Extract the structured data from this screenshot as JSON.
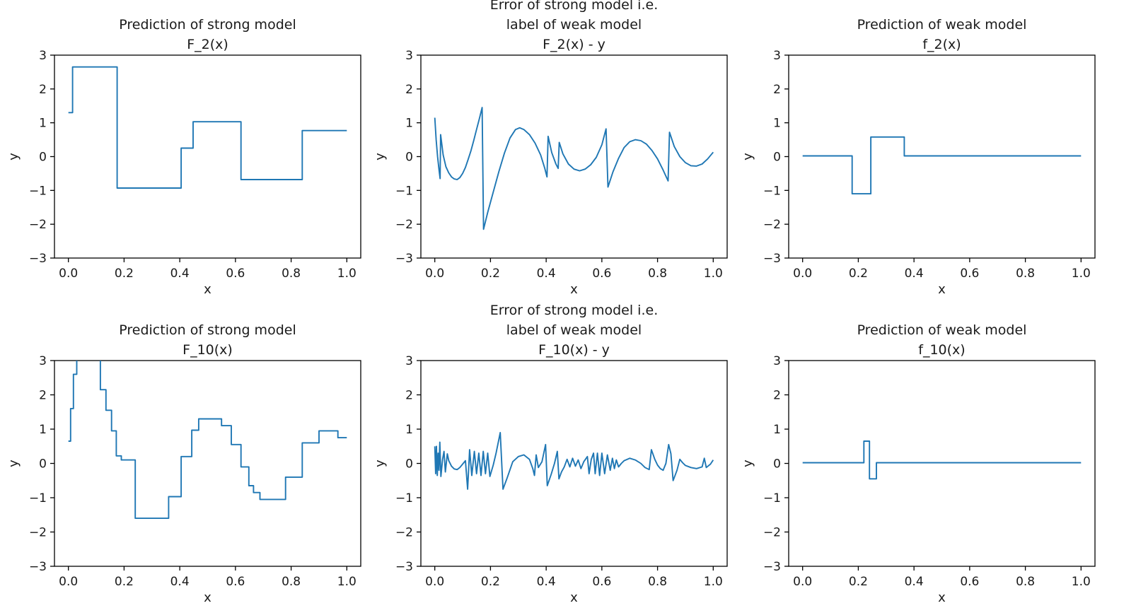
{
  "figure": {
    "background": "#ffffff",
    "line_color": "#1f77b4",
    "axis_color": "#000000",
    "xlim": [
      -0.05,
      1.05
    ],
    "ylim": [
      -3,
      3
    ],
    "xlabel": "x",
    "ylabel": "y",
    "grid": false,
    "legend": "none",
    "xticks": {
      "values": [
        0.0,
        0.2,
        0.4,
        0.6,
        0.8,
        1.0
      ],
      "labels": [
        "0.0",
        "0.2",
        "0.4",
        "0.6",
        "0.8",
        "1.0"
      ]
    },
    "yticks": {
      "values": [
        -3,
        -2,
        -1,
        0,
        1,
        2,
        3
      ],
      "labels": [
        "−3",
        "−2",
        "−1",
        "0",
        "1",
        "2",
        "3"
      ]
    }
  },
  "chart_data": [
    {
      "id": "strong-F2",
      "type": "line",
      "title_lines": [
        "Prediction of strong model",
        "F_2(x)"
      ],
      "title": "Prediction of strong model F_2(x)",
      "xlabel": "x",
      "ylabel": "y",
      "xlim": [
        -0.05,
        1.05
      ],
      "ylim": [
        -3,
        3
      ],
      "style": "step",
      "points": [
        [
          0,
          1.3
        ],
        [
          0.015,
          1.3
        ],
        [
          0.015,
          2.65
        ],
        [
          0.175,
          2.65
        ],
        [
          0.175,
          -0.93
        ],
        [
          0.405,
          -0.93
        ],
        [
          0.405,
          0.25
        ],
        [
          0.448,
          0.25
        ],
        [
          0.448,
          1.03
        ],
        [
          0.62,
          1.03
        ],
        [
          0.62,
          -0.68
        ],
        [
          0.84,
          -0.68
        ],
        [
          0.84,
          0.77
        ],
        [
          1.0,
          0.77
        ]
      ]
    },
    {
      "id": "error-F2",
      "type": "line",
      "title_lines": [
        "Error of strong model i.e.",
        "label of weak model",
        "F_2(x) - y"
      ],
      "title": "Error of strong model i.e. label of weak model F_2(x) - y",
      "xlabel": "x",
      "ylabel": "y",
      "xlim": [
        -0.05,
        1.05
      ],
      "ylim": [
        -3,
        3
      ],
      "style": "curve",
      "points": [
        [
          0,
          1.15
        ],
        [
          0.005,
          0.5
        ],
        [
          0.01,
          0.0
        ],
        [
          0.015,
          -0.38
        ],
        [
          0.019,
          -0.65
        ],
        [
          0.021,
          0.65
        ],
        [
          0.03,
          0.05
        ],
        [
          0.04,
          -0.3
        ],
        [
          0.05,
          -0.48
        ],
        [
          0.06,
          -0.6
        ],
        [
          0.07,
          -0.66
        ],
        [
          0.08,
          -0.68
        ],
        [
          0.09,
          -0.62
        ],
        [
          0.1,
          -0.5
        ],
        [
          0.11,
          -0.32
        ],
        [
          0.12,
          -0.08
        ],
        [
          0.13,
          0.18
        ],
        [
          0.14,
          0.48
        ],
        [
          0.15,
          0.8
        ],
        [
          0.16,
          1.12
        ],
        [
          0.17,
          1.45
        ],
        [
          0.175,
          -2.15
        ],
        [
          0.19,
          -1.65
        ],
        [
          0.21,
          -1.05
        ],
        [
          0.23,
          -0.45
        ],
        [
          0.25,
          0.1
        ],
        [
          0.27,
          0.55
        ],
        [
          0.29,
          0.8
        ],
        [
          0.305,
          0.85
        ],
        [
          0.32,
          0.8
        ],
        [
          0.34,
          0.65
        ],
        [
          0.36,
          0.4
        ],
        [
          0.38,
          0.05
        ],
        [
          0.395,
          -0.35
        ],
        [
          0.403,
          -0.6
        ],
        [
          0.407,
          0.6
        ],
        [
          0.42,
          0.12
        ],
        [
          0.435,
          -0.22
        ],
        [
          0.443,
          -0.35
        ],
        [
          0.447,
          0.42
        ],
        [
          0.46,
          0.08
        ],
        [
          0.48,
          -0.22
        ],
        [
          0.5,
          -0.37
        ],
        [
          0.52,
          -0.42
        ],
        [
          0.54,
          -0.37
        ],
        [
          0.56,
          -0.24
        ],
        [
          0.58,
          -0.02
        ],
        [
          0.6,
          0.35
        ],
        [
          0.615,
          0.82
        ],
        [
          0.622,
          -0.9
        ],
        [
          0.64,
          -0.45
        ],
        [
          0.66,
          -0.05
        ],
        [
          0.68,
          0.27
        ],
        [
          0.7,
          0.44
        ],
        [
          0.72,
          0.5
        ],
        [
          0.74,
          0.47
        ],
        [
          0.76,
          0.37
        ],
        [
          0.78,
          0.18
        ],
        [
          0.8,
          -0.07
        ],
        [
          0.82,
          -0.4
        ],
        [
          0.838,
          -0.72
        ],
        [
          0.843,
          0.72
        ],
        [
          0.86,
          0.3
        ],
        [
          0.88,
          0.0
        ],
        [
          0.9,
          -0.18
        ],
        [
          0.92,
          -0.27
        ],
        [
          0.94,
          -0.28
        ],
        [
          0.96,
          -0.22
        ],
        [
          0.98,
          -0.07
        ],
        [
          1.0,
          0.13
        ]
      ]
    },
    {
      "id": "weak-f2",
      "type": "line",
      "title_lines": [
        "Prediction of weak model",
        "f_2(x)"
      ],
      "title": "Prediction of weak model f_2(x)",
      "xlabel": "x",
      "ylabel": "y",
      "xlim": [
        -0.05,
        1.05
      ],
      "ylim": [
        -3,
        3
      ],
      "style": "step",
      "points": [
        [
          0,
          0.02
        ],
        [
          0.178,
          0.02
        ],
        [
          0.178,
          -1.1
        ],
        [
          0.245,
          -1.1
        ],
        [
          0.245,
          0.58
        ],
        [
          0.365,
          0.58
        ],
        [
          0.365,
          0.02
        ],
        [
          1.0,
          0.02
        ]
      ]
    },
    {
      "id": "strong-F10",
      "type": "line",
      "title_lines": [
        "Prediction of strong model",
        "F_10(x)"
      ],
      "title": "Prediction of strong model F_10(x)",
      "xlabel": "x",
      "ylabel": "y",
      "xlim": [
        -0.05,
        1.05
      ],
      "ylim": [
        -3,
        3
      ],
      "style": "step",
      "points": [
        [
          0,
          0.65
        ],
        [
          0.008,
          0.65
        ],
        [
          0.008,
          1.6
        ],
        [
          0.018,
          1.6
        ],
        [
          0.018,
          2.6
        ],
        [
          0.03,
          2.6
        ],
        [
          0.03,
          3.4
        ],
        [
          0.115,
          3.4
        ],
        [
          0.115,
          2.15
        ],
        [
          0.135,
          2.15
        ],
        [
          0.135,
          1.55
        ],
        [
          0.155,
          1.55
        ],
        [
          0.155,
          0.95
        ],
        [
          0.172,
          0.95
        ],
        [
          0.172,
          0.22
        ],
        [
          0.19,
          0.22
        ],
        [
          0.19,
          0.1
        ],
        [
          0.24,
          0.1
        ],
        [
          0.24,
          -1.6
        ],
        [
          0.36,
          -1.6
        ],
        [
          0.36,
          -0.97
        ],
        [
          0.405,
          -0.97
        ],
        [
          0.405,
          0.2
        ],
        [
          0.443,
          0.2
        ],
        [
          0.443,
          0.97
        ],
        [
          0.468,
          0.97
        ],
        [
          0.468,
          1.3
        ],
        [
          0.55,
          1.3
        ],
        [
          0.55,
          1.1
        ],
        [
          0.585,
          1.1
        ],
        [
          0.585,
          0.55
        ],
        [
          0.62,
          0.55
        ],
        [
          0.62,
          -0.1
        ],
        [
          0.648,
          -0.1
        ],
        [
          0.648,
          -0.65
        ],
        [
          0.665,
          -0.65
        ],
        [
          0.665,
          -0.85
        ],
        [
          0.688,
          -0.85
        ],
        [
          0.688,
          -1.05
        ],
        [
          0.78,
          -1.05
        ],
        [
          0.78,
          -0.4
        ],
        [
          0.84,
          -0.4
        ],
        [
          0.84,
          0.6
        ],
        [
          0.9,
          0.6
        ],
        [
          0.9,
          0.95
        ],
        [
          0.968,
          0.95
        ],
        [
          0.968,
          0.75
        ],
        [
          1.0,
          0.75
        ]
      ]
    },
    {
      "id": "error-F10",
      "type": "line",
      "title_lines": [
        "Error of strong model i.e.",
        "label of weak model",
        "F_10(x) - y"
      ],
      "title": "Error of strong model i.e. label of weak model F_10(x) - y",
      "xlabel": "x",
      "ylabel": "y",
      "xlim": [
        -0.05,
        1.05
      ],
      "ylim": [
        -3,
        3
      ],
      "style": "curve",
      "points": [
        [
          0,
          0.5
        ],
        [
          0.003,
          -0.3
        ],
        [
          0.006,
          0.5
        ],
        [
          0.009,
          -0.35
        ],
        [
          0.012,
          0.3
        ],
        [
          0.015,
          -0.2
        ],
        [
          0.018,
          0.62
        ],
        [
          0.022,
          -0.38
        ],
        [
          0.028,
          0.12
        ],
        [
          0.033,
          0.35
        ],
        [
          0.038,
          -0.25
        ],
        [
          0.045,
          0.28
        ],
        [
          0.05,
          0.08
        ],
        [
          0.06,
          -0.08
        ],
        [
          0.07,
          -0.16
        ],
        [
          0.08,
          -0.18
        ],
        [
          0.09,
          -0.12
        ],
        [
          0.1,
          -0.02
        ],
        [
          0.11,
          0.08
        ],
        [
          0.118,
          -0.75
        ],
        [
          0.125,
          0.4
        ],
        [
          0.133,
          -0.35
        ],
        [
          0.142,
          0.35
        ],
        [
          0.15,
          -0.3
        ],
        [
          0.158,
          0.3
        ],
        [
          0.166,
          -0.35
        ],
        [
          0.174,
          0.35
        ],
        [
          0.182,
          -0.3
        ],
        [
          0.19,
          0.3
        ],
        [
          0.198,
          -0.38
        ],
        [
          0.21,
          -0.05
        ],
        [
          0.22,
          0.3
        ],
        [
          0.235,
          0.9
        ],
        [
          0.245,
          -0.75
        ],
        [
          0.26,
          -0.42
        ],
        [
          0.28,
          0.05
        ],
        [
          0.3,
          0.2
        ],
        [
          0.32,
          0.25
        ],
        [
          0.34,
          0.12
        ],
        [
          0.352,
          -0.15
        ],
        [
          0.358,
          -0.35
        ],
        [
          0.364,
          0.25
        ],
        [
          0.372,
          -0.12
        ],
        [
          0.385,
          0.05
        ],
        [
          0.398,
          0.55
        ],
        [
          0.404,
          -0.65
        ],
        [
          0.418,
          -0.32
        ],
        [
          0.43,
          0.0
        ],
        [
          0.44,
          0.35
        ],
        [
          0.446,
          -0.45
        ],
        [
          0.455,
          -0.25
        ],
        [
          0.465,
          -0.1
        ],
        [
          0.475,
          0.12
        ],
        [
          0.485,
          -0.1
        ],
        [
          0.495,
          0.15
        ],
        [
          0.505,
          -0.08
        ],
        [
          0.515,
          0.1
        ],
        [
          0.525,
          -0.15
        ],
        [
          0.535,
          0.05
        ],
        [
          0.548,
          0.2
        ],
        [
          0.554,
          -0.3
        ],
        [
          0.562,
          0.12
        ],
        [
          0.57,
          0.3
        ],
        [
          0.576,
          -0.3
        ],
        [
          0.584,
          0.3
        ],
        [
          0.592,
          -0.35
        ],
        [
          0.6,
          0.3
        ],
        [
          0.61,
          -0.3
        ],
        [
          0.62,
          0.25
        ],
        [
          0.63,
          -0.2
        ],
        [
          0.638,
          0.15
        ],
        [
          0.645,
          -0.15
        ],
        [
          0.652,
          0.1
        ],
        [
          0.66,
          -0.1
        ],
        [
          0.67,
          0.0
        ],
        [
          0.68,
          0.08
        ],
        [
          0.7,
          0.15
        ],
        [
          0.72,
          0.1
        ],
        [
          0.74,
          0.0
        ],
        [
          0.755,
          -0.12
        ],
        [
          0.77,
          -0.18
        ],
        [
          0.778,
          0.4
        ],
        [
          0.79,
          0.12
        ],
        [
          0.8,
          -0.05
        ],
        [
          0.81,
          -0.15
        ],
        [
          0.82,
          -0.2
        ],
        [
          0.83,
          0.0
        ],
        [
          0.84,
          0.55
        ],
        [
          0.848,
          0.28
        ],
        [
          0.856,
          -0.5
        ],
        [
          0.87,
          -0.2
        ],
        [
          0.88,
          0.12
        ],
        [
          0.89,
          0.02
        ],
        [
          0.9,
          -0.06
        ],
        [
          0.92,
          -0.12
        ],
        [
          0.94,
          -0.15
        ],
        [
          0.96,
          -0.1
        ],
        [
          0.968,
          0.15
        ],
        [
          0.975,
          -0.12
        ],
        [
          0.99,
          -0.02
        ],
        [
          1.0,
          0.1
        ]
      ]
    },
    {
      "id": "weak-f10",
      "type": "line",
      "title_lines": [
        "Prediction of weak model",
        "f_10(x)"
      ],
      "title": "Prediction of weak model f_10(x)",
      "xlabel": "x",
      "ylabel": "y",
      "xlim": [
        -0.05,
        1.05
      ],
      "ylim": [
        -3,
        3
      ],
      "style": "step",
      "points": [
        [
          0,
          0.02
        ],
        [
          0.22,
          0.02
        ],
        [
          0.22,
          0.65
        ],
        [
          0.24,
          0.65
        ],
        [
          0.24,
          -0.45
        ],
        [
          0.265,
          -0.45
        ],
        [
          0.265,
          0.02
        ],
        [
          1.0,
          0.02
        ]
      ]
    }
  ]
}
